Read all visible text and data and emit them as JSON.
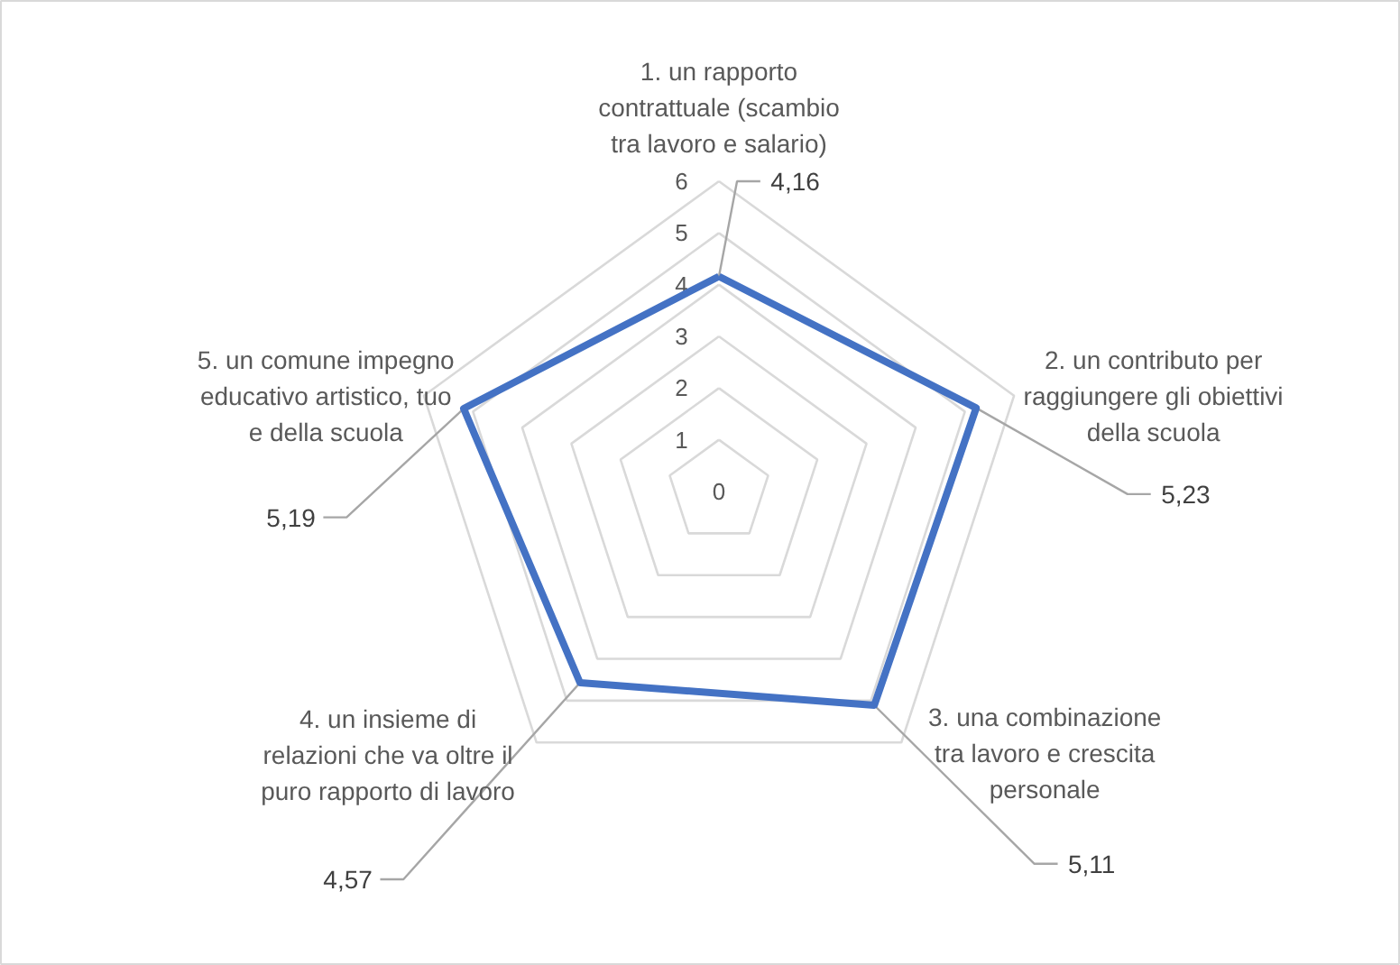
{
  "chart_data": {
    "type": "radar",
    "categories": [
      "1. un rapporto contrattuale (scambio tra lavoro e salario)",
      "2. un contributo per raggiungere gli obiettivi della scuola",
      "3. una combinazione tra lavoro e crescita personale",
      "4. un insieme di relazioni che va oltre il puro rapporto di lavoro",
      "5. un comune impegno educativo artistico, tuo e della scuola"
    ],
    "series": [
      {
        "color": "#4472c4",
        "values": [
          4.16,
          5.23,
          5.11,
          4.57,
          5.19
        ],
        "value_labels": [
          "4,16",
          "5,23",
          "5,11",
          "4,57",
          "5,19"
        ]
      }
    ],
    "ylim": [
      0,
      6
    ],
    "yticks": [
      0,
      1,
      2,
      3,
      4,
      5,
      6
    ],
    "grid": true,
    "marker": "none",
    "line_style": "solid"
  }
}
